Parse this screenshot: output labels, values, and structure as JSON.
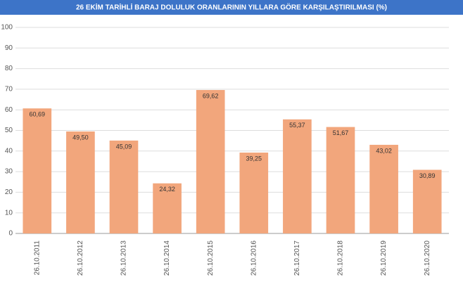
{
  "chart_data": {
    "type": "bar",
    "title": "26 EKİM TARİHLİ BARAJ DOLULUK ORANLARININ YILLARA GÖRE KARŞILAŞTIRILMASI (%)",
    "categories": [
      "26.10.2011",
      "26.10.2012",
      "26.10.2013",
      "26.10.2014",
      "26.10.2015",
      "26.10.2016",
      "26.10.2017",
      "26.10.2018",
      "26.10.2019",
      "26.10.2020"
    ],
    "values": [
      60.69,
      49.5,
      45.09,
      24.32,
      69.62,
      39.25,
      55.37,
      51.67,
      43.02,
      30.89
    ],
    "value_labels": [
      "60,69",
      "49,50",
      "45,09",
      "24,32",
      "69,62",
      "39,25",
      "55,37",
      "51,67",
      "43,02",
      "30,89"
    ],
    "color": "#f2a67c",
    "ylim": [
      0,
      100
    ],
    "yticks": [
      0,
      10,
      20,
      30,
      40,
      50,
      60,
      70,
      80,
      90,
      100
    ],
    "grid": true
  }
}
